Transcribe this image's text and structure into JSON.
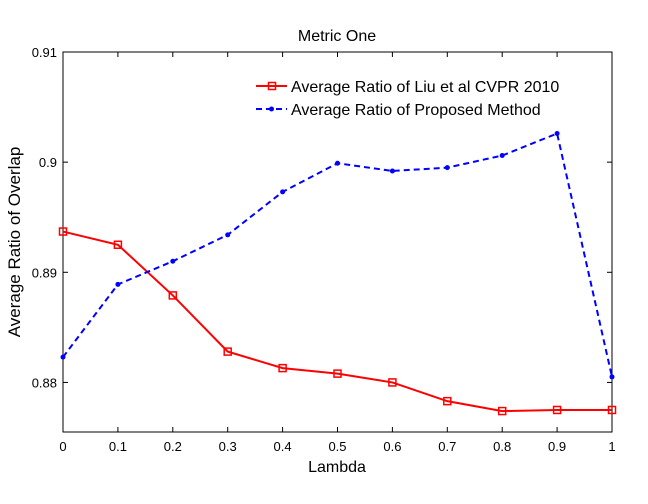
{
  "chart_data": {
    "type": "line",
    "title": "Metric One",
    "xlabel": "Lambda",
    "ylabel": "Average Ratio of Overlap",
    "x": [
      0,
      0.1,
      0.2,
      0.3,
      0.4,
      0.5,
      0.6,
      0.7,
      0.8,
      0.9,
      1
    ],
    "x_tick_labels": [
      "0",
      "0.1",
      "0.2",
      "0.3",
      "0.4",
      "0.5",
      "0.6",
      "0.7",
      "0.8",
      "0.9",
      "1"
    ],
    "y_ticks": [
      0.88,
      0.89,
      0.9,
      0.91
    ],
    "y_tick_labels": [
      "0.88",
      "0.89",
      "0.9",
      "0.91"
    ],
    "xlim": [
      0,
      1
    ],
    "ylim": [
      0.8755,
      0.91
    ],
    "grid": false,
    "legend_position": "top-right",
    "series": [
      {
        "name": "Average Ratio of Liu et al CVPR 2010",
        "color": "#ff0000",
        "line_style": "solid",
        "marker": "square",
        "values": [
          0.8937,
          0.8925,
          0.8879,
          0.8828,
          0.8813,
          0.8808,
          0.88,
          0.8783,
          0.8774,
          0.8775,
          0.8775
        ]
      },
      {
        "name": "Average Ratio of Proposed Method",
        "color": "#0000ff",
        "line_style": "dashed",
        "marker": "dot",
        "values": [
          0.8823,
          0.8889,
          0.891,
          0.8934,
          0.8973,
          0.8999,
          0.8992,
          0.8995,
          0.9006,
          0.9026,
          0.8805
        ]
      }
    ]
  }
}
